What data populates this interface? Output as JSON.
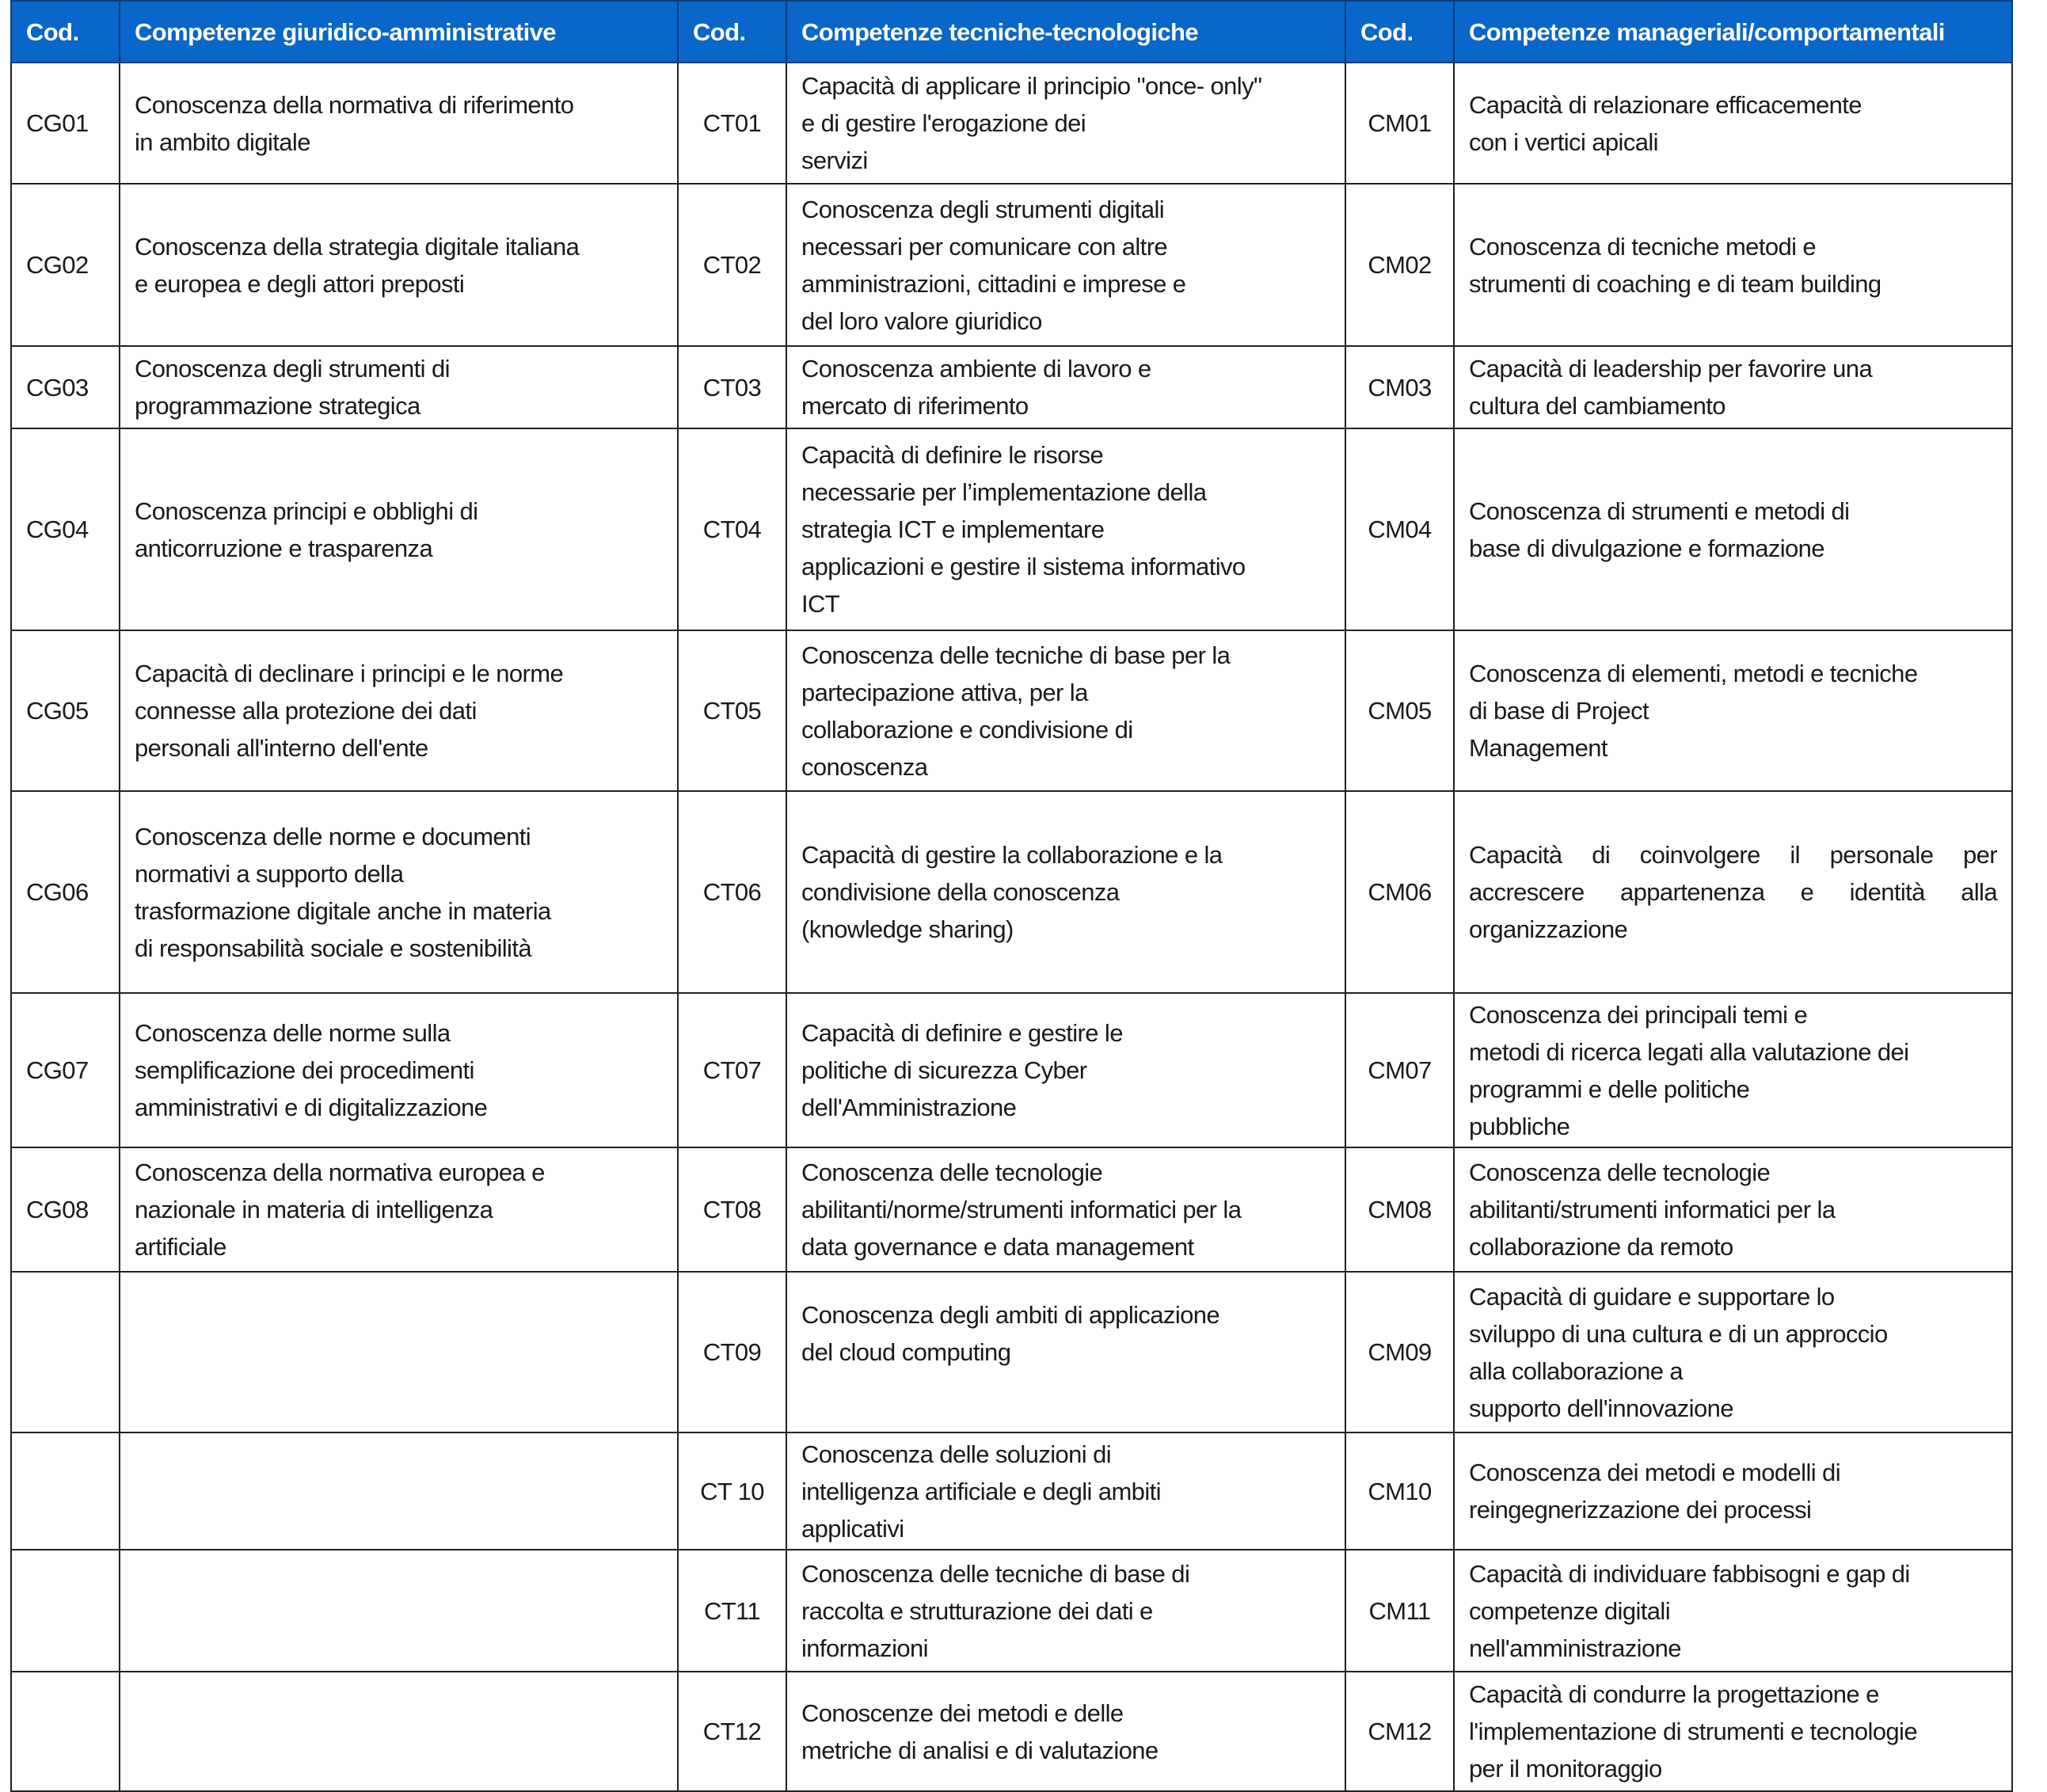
{
  "header": {
    "code_label": "Cod.",
    "col_giuridico": "Competenze giuridico-amministrative",
    "col_tecnico": "Competenze tecniche-tecnologiche",
    "col_manageriale": "Competenze manageriali/comportamentali"
  },
  "colors": {
    "header_bg": "#0a66c8",
    "header_text": "#ffffff"
  },
  "rows": [
    {
      "cg": "CG01",
      "cg_text": "Conoscenza della normativa di riferimento\nin ambito digitale",
      "ct": "CT01",
      "ct_text": "Capacità di applicare il principio \"once- only\"\ne di gestire l'erogazione dei\nservizi",
      "cm": "CM01",
      "cm_text": "Capacità di relazionare efficacemente\ncon i vertici apicali"
    },
    {
      "cg": "CG02",
      "cg_text": "Conoscenza della strategia digitale italiana\ne europea e degli attori preposti",
      "ct": "CT02",
      "ct_text": "Conoscenza degli strumenti digitali\nnecessari per comunicare con altre\namministrazioni, cittadini e imprese e\ndel loro valore giuridico",
      "cm": "CM02",
      "cm_text": "Conoscenza di tecniche metodi e\nstrumenti di coaching e di team building"
    },
    {
      "cg": "CG03",
      "cg_text": "Conoscenza degli strumenti di\nprogrammazione strategica",
      "ct": "CT03",
      "ct_text": "Conoscenza ambiente di lavoro e\nmercato di riferimento",
      "cm": "CM03",
      "cm_text": "Capacità di leadership per favorire una\ncultura del cambiamento"
    },
    {
      "cg": "CG04",
      "cg_text": "Conoscenza principi e obblighi di\nanticorruzione e trasparenza",
      "ct": "CT04",
      "ct_text": "Capacità di definire le risorse\nnecessarie per l’implementazione della\nstrategia ICT e implementare\napplicazioni e gestire il sistema informativo\nICT",
      "cm": "CM04",
      "cm_text": "Conoscenza di strumenti e metodi di\nbase di divulgazione e formazione"
    },
    {
      "cg": "CG05",
      "cg_text": "Capacità di declinare i principi e le norme\nconnesse alla protezione dei dati\npersonali all'interno dell'ente",
      "ct": "CT05",
      "ct_text": "Conoscenza delle tecniche di base per la\npartecipazione attiva, per la\ncollaborazione e condivisione di\nconoscenza",
      "cm": "CM05",
      "cm_text": "Conoscenza di elementi, metodi e tecniche\ndi base di Project\nManagement"
    },
    {
      "cg": "CG06",
      "cg_text": "Conoscenza delle norme e documenti\nnormativi a supporto della\ntrasformazione digitale anche in materia\ndi responsabilità sociale e sostenibilità",
      "ct": "CT06",
      "ct_text": "Capacità di gestire la collaborazione e la\ncondivisione della conoscenza\n(knowledge sharing)",
      "cm": "CM06",
      "cm_text": "Capacità di coinvolgere il personale per accrescere appartenenza e identità alla organizzazione"
    },
    {
      "cg": "CG07",
      "cg_text": "Conoscenza delle norme sulla\nsemplificazione dei procedimenti\namministrativi e di digitalizzazione",
      "ct": "CT07",
      "ct_text": "Capacità di definire e gestire le\npolitiche di sicurezza Cyber\ndell'Amministrazione",
      "cm": "CM07",
      "cm_text": "Conoscenza dei principali temi e\nmetodi di ricerca legati alla valutazione dei\nprogrammi e delle politiche\npubbliche"
    },
    {
      "cg": "CG08",
      "cg_text": "Conoscenza della normativa europea e\nnazionale in materia di intelligenza\nartificiale",
      "ct": "CT08",
      "ct_text": "Conoscenza delle tecnologie\nabilitanti/norme/strumenti informatici per la\ndata governance e data management",
      "cm": "CM08",
      "cm_text": "Conoscenza delle tecnologie\nabilitanti/strumenti informatici per la\ncollaborazione da remoto"
    },
    {
      "cg": "",
      "cg_text": "",
      "ct": "CT09",
      "ct_text": "Conoscenza degli ambiti di applicazione\ndel cloud computing\n\n",
      "cm": "CM09",
      "cm_text": "Capacità di guidare e supportare lo\nsviluppo di una cultura e di un approccio\nalla collaborazione a\nsupporto dell'innovazione"
    },
    {
      "cg": "",
      "cg_text": "",
      "ct": "CT 10",
      "ct_text": "Conoscenza delle soluzioni di\nintelligenza artificiale e degli ambiti\napplicativi",
      "cm": "CM10",
      "cm_text": "Conoscenza dei metodi e modelli di\nreingegnerizzazione dei processi\n"
    },
    {
      "cg": "",
      "cg_text": "",
      "ct": "CT11",
      "ct_text": "Conoscenza delle tecniche di base di\nraccolta e strutturazione dei dati e\ninformazioni",
      "cm": "CM11",
      "cm_text": "Capacità di individuare fabbisogni e gap di\ncompetenze digitali\nnell'amministrazione"
    },
    {
      "cg": "",
      "cg_text": "",
      "ct": "CT12",
      "ct_text": "Conoscenze dei metodi e delle\nmetriche di analisi e di valutazione\n",
      "cm": "CM12",
      "cm_text": "Capacità di condurre la progettazione e\nl'implementazione di strumenti e tecnologie\nper il monitoraggio"
    }
  ]
}
